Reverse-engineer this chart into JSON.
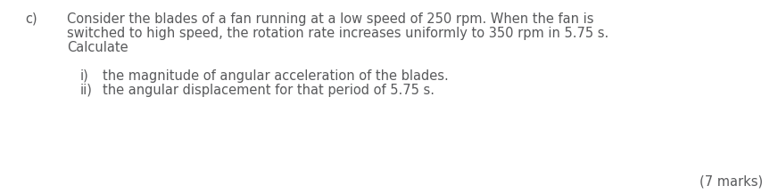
{
  "background_color": "#ffffff",
  "label_c": "c)",
  "line1": "Consider the blades of a fan running at a low speed of 250 rpm. When the fan is",
  "line2": "switched to high speed, the rotation rate increases uniformly to 350 rpm in 5.75 s.",
  "line3": "Calculate",
  "item_i_label": "i)",
  "item_i_text": "the magnitude of angular acceleration of the blades.",
  "item_ii_label": "ii)",
  "item_ii_text": "the angular displacement for that period of 5.75 s.",
  "marks": "(7 marks)",
  "font_color": "#58595b",
  "font_size": 10.5
}
